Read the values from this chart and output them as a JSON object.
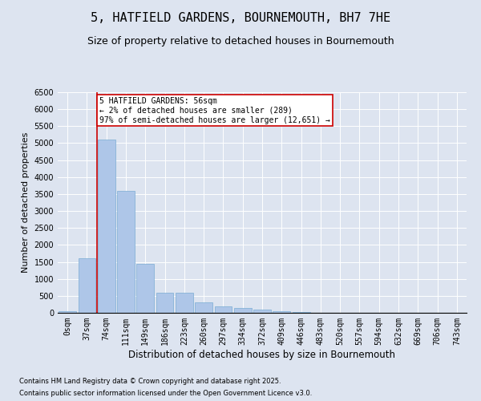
{
  "title": "5, HATFIELD GARDENS, BOURNEMOUTH, BH7 7HE",
  "subtitle": "Size of property relative to detached houses in Bournemouth",
  "xlabel": "Distribution of detached houses by size in Bournemouth",
  "ylabel": "Number of detached properties",
  "categories": [
    "0sqm",
    "37sqm",
    "74sqm",
    "111sqm",
    "149sqm",
    "186sqm",
    "223sqm",
    "260sqm",
    "297sqm",
    "334sqm",
    "372sqm",
    "409sqm",
    "446sqm",
    "483sqm",
    "520sqm",
    "557sqm",
    "594sqm",
    "632sqm",
    "669sqm",
    "706sqm",
    "743sqm"
  ],
  "values": [
    50,
    1600,
    5100,
    3600,
    1450,
    580,
    580,
    300,
    200,
    140,
    100,
    50,
    30,
    10,
    5,
    3,
    2,
    1,
    1,
    0,
    0
  ],
  "bar_color": "#aec6e8",
  "bar_edge_color": "#7aadd4",
  "vline_x": 1.5,
  "vline_color": "#cc0000",
  "annotation_text": "5 HATFIELD GARDENS: 56sqm\n← 2% of detached houses are smaller (289)\n97% of semi-detached houses are larger (12,651) →",
  "annotation_box_color": "#ffffff",
  "annotation_box_edge_color": "#cc0000",
  "ylim": [
    0,
    6500
  ],
  "yticks": [
    0,
    500,
    1000,
    1500,
    2000,
    2500,
    3000,
    3500,
    4000,
    4500,
    5000,
    5500,
    6000,
    6500
  ],
  "background_color": "#dde4f0",
  "plot_background": "#dde4f0",
  "footer1": "Contains HM Land Registry data © Crown copyright and database right 2025.",
  "footer2": "Contains public sector information licensed under the Open Government Licence v3.0.",
  "title_fontsize": 11,
  "subtitle_fontsize": 9,
  "xlabel_fontsize": 8.5,
  "ylabel_fontsize": 8,
  "tick_fontsize": 7,
  "annotation_fontsize": 7,
  "footer_fontsize": 6
}
